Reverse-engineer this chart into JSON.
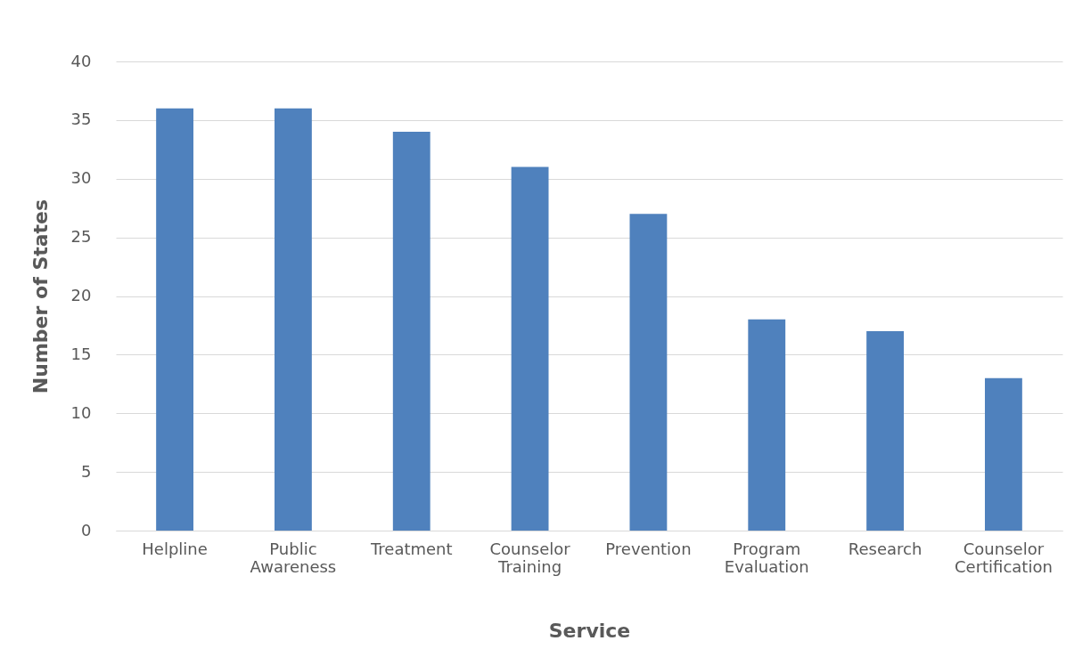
{
  "chart_data": {
    "type": "bar",
    "xlabel": "Service",
    "ylabel": "Number of States",
    "categories": [
      "Helpline",
      "Public Awareness",
      "Treatment",
      "Counselor Training",
      "Prevention",
      "Program Evaluation",
      "Research",
      "Counselor Certification"
    ],
    "values": [
      36,
      36,
      34,
      31,
      27,
      18,
      17,
      13
    ],
    "color": "#4f81bd",
    "ylim": [
      0,
      40
    ],
    "yticks": [
      0,
      5,
      10,
      15,
      20,
      25,
      30,
      35,
      40
    ],
    "grid": "y"
  }
}
